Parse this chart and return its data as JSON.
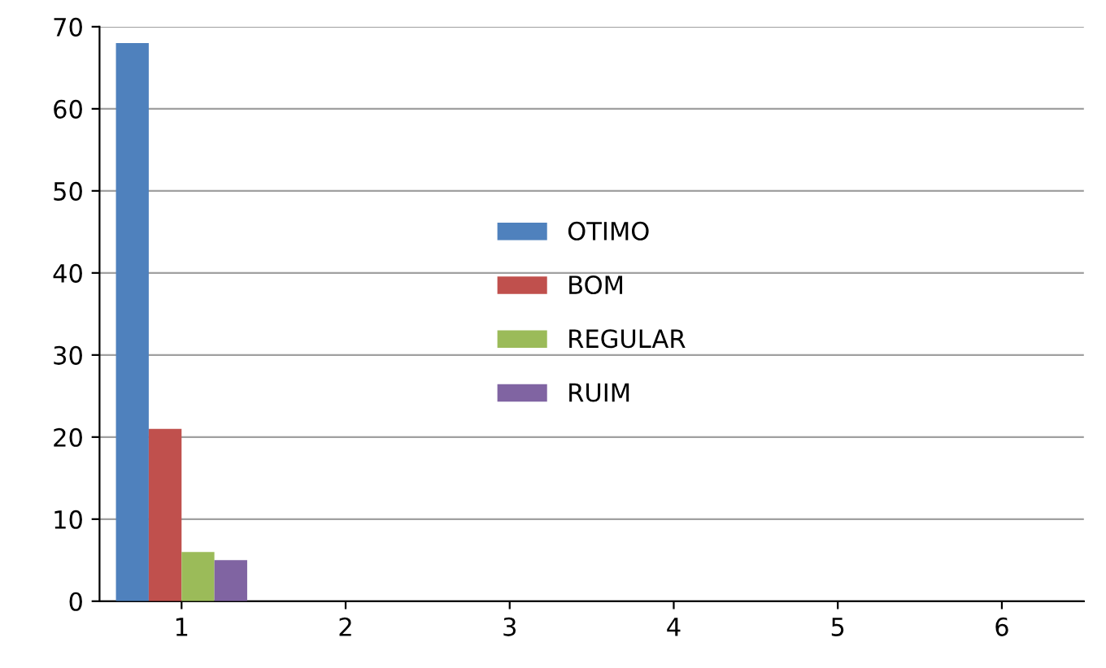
{
  "chart_data": {
    "type": "bar",
    "categories": [
      "1",
      "2",
      "3",
      "4",
      "5",
      "6"
    ],
    "series": [
      {
        "name": "OTIMO",
        "color": "#4f81bd",
        "values": [
          68,
          null,
          null,
          null,
          null,
          null
        ]
      },
      {
        "name": "BOM",
        "color": "#c0504d",
        "values": [
          21,
          null,
          null,
          null,
          null,
          null
        ]
      },
      {
        "name": "REGULAR",
        "color": "#9bbb59",
        "values": [
          6,
          null,
          null,
          null,
          null,
          null
        ]
      },
      {
        "name": "RUIM",
        "color": "#8064a2",
        "values": [
          5,
          null,
          null,
          null,
          null,
          null
        ]
      }
    ],
    "ylim": [
      0,
      70
    ],
    "yticks": [
      0,
      10,
      20,
      30,
      40,
      50,
      60,
      70
    ],
    "grid": "y",
    "legend": "center"
  }
}
